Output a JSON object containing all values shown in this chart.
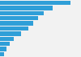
{
  "values": [
    23.5,
    17.5,
    14.5,
    12.8,
    11.2,
    9.5,
    7.0,
    4.5,
    3.2,
    2.1,
    1.4
  ],
  "bar_color": "#2f9fd8",
  "background_color": "#f2f2f2",
  "xlim_max": 27,
  "bar_height": 0.82
}
